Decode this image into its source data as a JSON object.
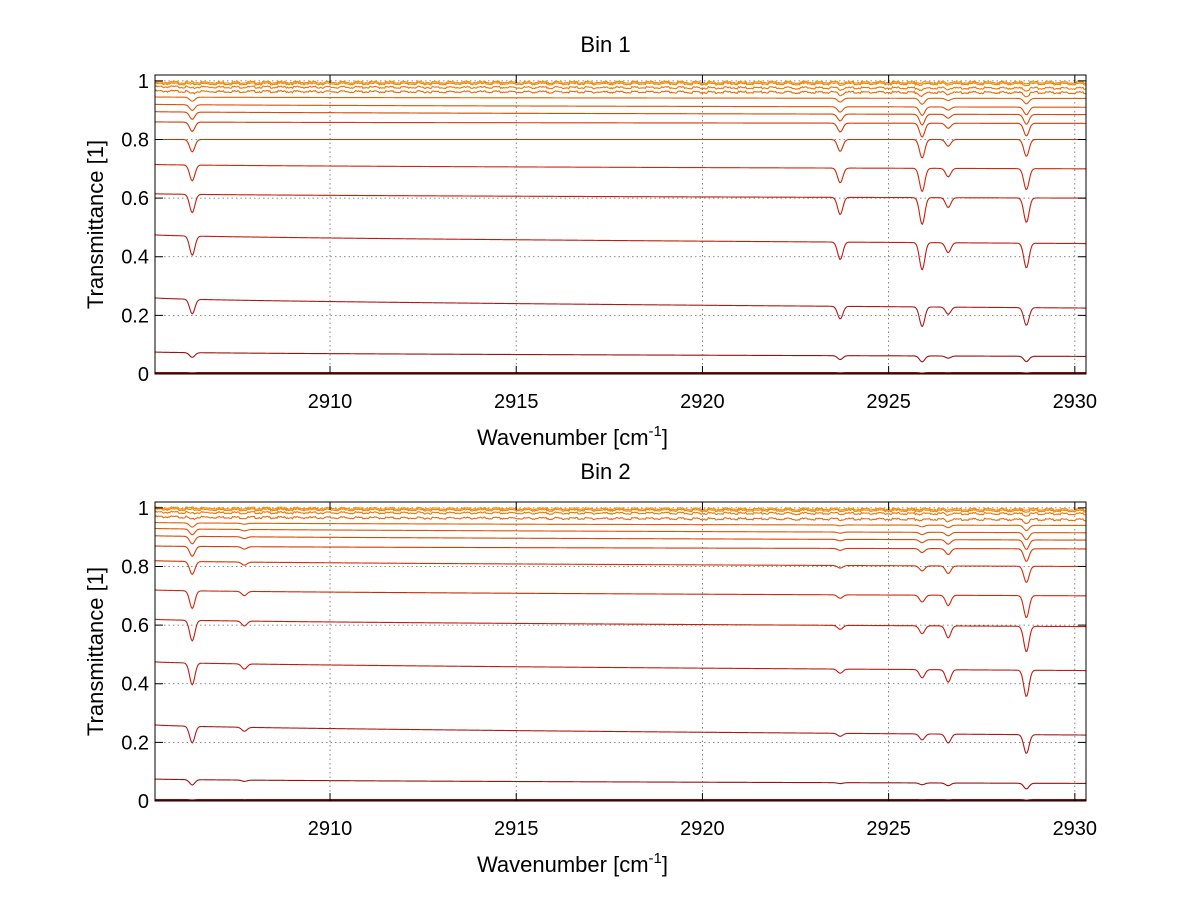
{
  "chart_data": [
    {
      "type": "line",
      "title": "Bin 1",
      "xlabel": "Wavenumber [cm",
      "xlabel_sup": "-1",
      "xlabel_close": "]",
      "ylabel": "Transmittance [1]",
      "xlim": [
        2905.3,
        2930.3
      ],
      "ylim": [
        0,
        1.02
      ],
      "grid": true,
      "xticks": [
        2910,
        2915,
        2920,
        2925,
        2930
      ],
      "xtick_labels": [
        "2910",
        "2915",
        "2920",
        "2925",
        "2930"
      ],
      "yticks": [
        0,
        0.2,
        0.4,
        0.6,
        0.8,
        1
      ],
      "ytick_labels": [
        "0",
        "0.2",
        "0.4",
        "0.6",
        "0.8",
        "1"
      ],
      "baselines_start": [
        0.0,
        0.005,
        0.075,
        0.26,
        0.475,
        0.615,
        0.715,
        0.8,
        0.86,
        0.895,
        0.92,
        0.945,
        0.965,
        0.98,
        0.99,
        0.995
      ],
      "baselines_end": [
        0.0,
        0.005,
        0.06,
        0.225,
        0.445,
        0.6,
        0.7,
        0.8,
        0.855,
        0.885,
        0.91,
        0.94,
        0.96,
        0.975,
        0.99,
        0.995
      ],
      "absorption_lines": [
        {
          "x": 2906.3,
          "depth": 0.22
        },
        {
          "x": 2923.7,
          "depth": 0.21
        },
        {
          "x": 2925.9,
          "depth": 0.33
        },
        {
          "x": 2926.6,
          "depth": 0.12
        },
        {
          "x": 2928.7,
          "depth": 0.3
        }
      ],
      "colors": [
        "#7a0000",
        "#8b0a0a",
        "#9c1010",
        "#b01818",
        "#c01c10",
        "#c81e0c",
        "#d0280a",
        "#d43008",
        "#d83a06",
        "#dc4606",
        "#e05206",
        "#e45e06",
        "#e86a06",
        "#ec7604",
        "#f08204",
        "#f48c02"
      ]
    },
    {
      "type": "line",
      "title": "Bin 2",
      "xlabel": "Wavenumber [cm",
      "xlabel_sup": "-1",
      "xlabel_close": "]",
      "ylabel": "Transmittance [1]",
      "xlim": [
        2905.3,
        2930.3
      ],
      "ylim": [
        0,
        1.02
      ],
      "grid": true,
      "xticks": [
        2910,
        2915,
        2920,
        2925,
        2930
      ],
      "xtick_labels": [
        "2910",
        "2915",
        "2920",
        "2925",
        "2930"
      ],
      "yticks": [
        0,
        0.2,
        0.4,
        0.6,
        0.8,
        1
      ],
      "ytick_labels": [
        "0",
        "0.2",
        "0.4",
        "0.6",
        "0.8",
        "1"
      ],
      "baselines_start": [
        0.0,
        0.005,
        0.075,
        0.26,
        0.475,
        0.62,
        0.72,
        0.82,
        0.87,
        0.905,
        0.93,
        0.95,
        0.97,
        0.985,
        0.995,
        1.0
      ],
      "baselines_end": [
        0.0,
        0.005,
        0.06,
        0.225,
        0.445,
        0.595,
        0.7,
        0.8,
        0.86,
        0.89,
        0.915,
        0.94,
        0.96,
        0.98,
        0.99,
        0.995
      ],
      "absorption_lines": [
        {
          "x": 2906.3,
          "depth": 0.25
        },
        {
          "x": 2907.7,
          "depth": 0.06
        },
        {
          "x": 2923.7,
          "depth": 0.05
        },
        {
          "x": 2925.9,
          "depth": 0.1
        },
        {
          "x": 2926.6,
          "depth": 0.15
        },
        {
          "x": 2928.7,
          "depth": 0.32
        }
      ],
      "colors": [
        "#7a0000",
        "#8b0a0a",
        "#9c1010",
        "#b01818",
        "#c01c10",
        "#c81e0c",
        "#d0280a",
        "#d43008",
        "#d83a06",
        "#dc4606",
        "#e05206",
        "#e45e06",
        "#e86a06",
        "#ec7604",
        "#f08204",
        "#f48c02"
      ]
    }
  ]
}
